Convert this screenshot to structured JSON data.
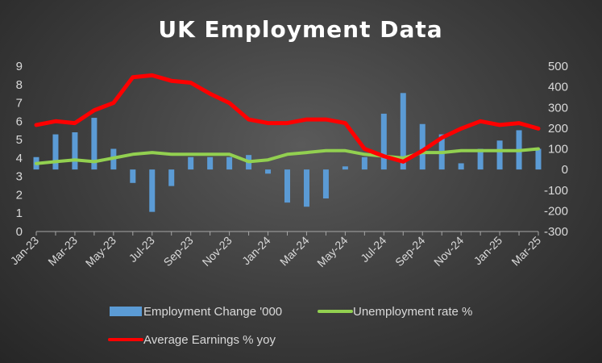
{
  "chart_data": {
    "type": "bar+line",
    "title": "UK Employment Data",
    "categories": [
      "Jan-23",
      "Feb-23",
      "Mar-23",
      "Apr-23",
      "May-23",
      "Jun-23",
      "Jul-23",
      "Aug-23",
      "Sep-23",
      "Oct-23",
      "Nov-23",
      "Dec-23",
      "Jan-24",
      "Feb-24",
      "Mar-24",
      "Apr-24",
      "May-24",
      "Jun-24",
      "Jul-24",
      "Aug-24",
      "Sep-24",
      "Oct-24",
      "Nov-24",
      "Dec-24",
      "Jan-25",
      "Feb-25",
      "Mar-25"
    ],
    "x_tick_labels": [
      "Jan-23",
      "Mar-23",
      "May-23",
      "Jul-23",
      "Sep-23",
      "Nov-23",
      "Jan-24",
      "Mar-24",
      "May-24",
      "Jul-24",
      "Sep-24",
      "Nov-24",
      "Jan-25",
      "Mar-25"
    ],
    "left_axis": {
      "min": 0,
      "max": 9,
      "ticks": [
        "0",
        "1",
        "2",
        "3",
        "4",
        "5",
        "6",
        "7",
        "8",
        "9"
      ]
    },
    "right_axis": {
      "min": -300,
      "max": 500,
      "ticks": [
        "-300",
        "-200",
        "-100",
        "0",
        "100",
        "200",
        "300",
        "400",
        "500"
      ]
    },
    "series": [
      {
        "name": "Employment Change '000",
        "type": "bar",
        "axis": "right",
        "color": "#5b9bd5",
        "values": [
          60,
          170,
          180,
          250,
          100,
          -65,
          -205,
          -80,
          60,
          60,
          60,
          70,
          -20,
          -160,
          -180,
          -140,
          15,
          60,
          270,
          370,
          220,
          170,
          30,
          100,
          140,
          190,
          100
        ]
      },
      {
        "name": "Unemployment rate %",
        "type": "line",
        "axis": "left",
        "color": "#92d050",
        "values": [
          3.7,
          3.8,
          3.9,
          3.8,
          4.0,
          4.2,
          4.3,
          4.2,
          4.2,
          4.2,
          4.2,
          3.8,
          3.9,
          4.2,
          4.3,
          4.4,
          4.4,
          4.2,
          4.1,
          4.0,
          4.3,
          4.3,
          4.4,
          4.4,
          4.4,
          4.4,
          4.5
        ]
      },
      {
        "name": "Average Earnings % yoy",
        "type": "line",
        "axis": "left",
        "color": "#ff0000",
        "values": [
          5.8,
          6.0,
          5.9,
          6.6,
          7.0,
          8.4,
          8.5,
          8.2,
          8.1,
          7.5,
          7.0,
          6.1,
          5.9,
          5.9,
          6.1,
          6.1,
          5.9,
          4.5,
          4.1,
          3.8,
          4.4,
          5.1,
          5.6,
          6.0,
          5.8,
          5.9,
          5.6
        ]
      }
    ],
    "legend_position": "bottom",
    "grid": false
  }
}
